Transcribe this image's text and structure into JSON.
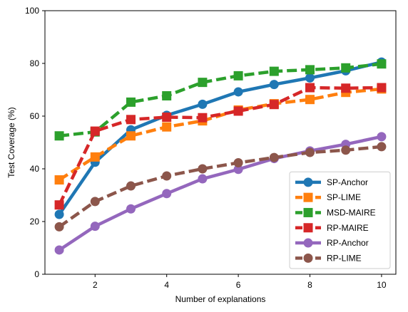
{
  "chart_data": {
    "type": "line",
    "title": "",
    "xlabel": "Number of explanations",
    "ylabel": "Test Coverage (%)",
    "xlim": [
      0.6,
      10.4
    ],
    "ylim": [
      0,
      100
    ],
    "xticks": [
      2,
      4,
      6,
      8,
      10
    ],
    "yticks": [
      0,
      20,
      40,
      60,
      80,
      100
    ],
    "grid": false,
    "legend_position": "lower-right",
    "x": [
      1,
      2,
      3,
      4,
      5,
      6,
      7,
      8,
      9,
      10
    ],
    "series": [
      {
        "name": "SP-Anchor",
        "color": "#1f77b4",
        "style": "solid",
        "marker": "circle",
        "values": [
          22.7,
          42.5,
          54.8,
          60.3,
          64.5,
          69.2,
          72.0,
          74.5,
          77.2,
          80.5
        ]
      },
      {
        "name": "SP-LIME",
        "color": "#ff7f0e",
        "style": "dashed",
        "marker": "square",
        "values": [
          35.8,
          44.5,
          52.5,
          55.9,
          58.2,
          62.3,
          64.7,
          66.3,
          69.0,
          70.3
        ]
      },
      {
        "name": "MSD-MAIRE",
        "color": "#2ca02c",
        "style": "dashed",
        "marker": "square",
        "values": [
          52.5,
          54.0,
          65.3,
          67.7,
          72.8,
          75.3,
          77.0,
          77.6,
          78.3,
          79.8
        ]
      },
      {
        "name": "RP-MAIRE",
        "color": "#d62728",
        "style": "dashed",
        "marker": "square",
        "values": [
          26.3,
          54.3,
          58.7,
          59.6,
          59.4,
          61.9,
          64.4,
          70.8,
          70.6,
          70.8
        ]
      },
      {
        "name": "RP-Anchor",
        "color": "#9467bd",
        "style": "solid",
        "marker": "circle",
        "values": [
          9.2,
          18.2,
          24.8,
          30.6,
          36.2,
          39.8,
          43.9,
          46.8,
          49.3,
          52.2
        ]
      },
      {
        "name": "RP-LIME",
        "color": "#8c564b",
        "style": "dashed",
        "marker": "circle",
        "values": [
          18.0,
          27.6,
          33.5,
          37.3,
          40.0,
          42.3,
          44.3,
          46.2,
          47.1,
          48.4
        ]
      }
    ]
  }
}
